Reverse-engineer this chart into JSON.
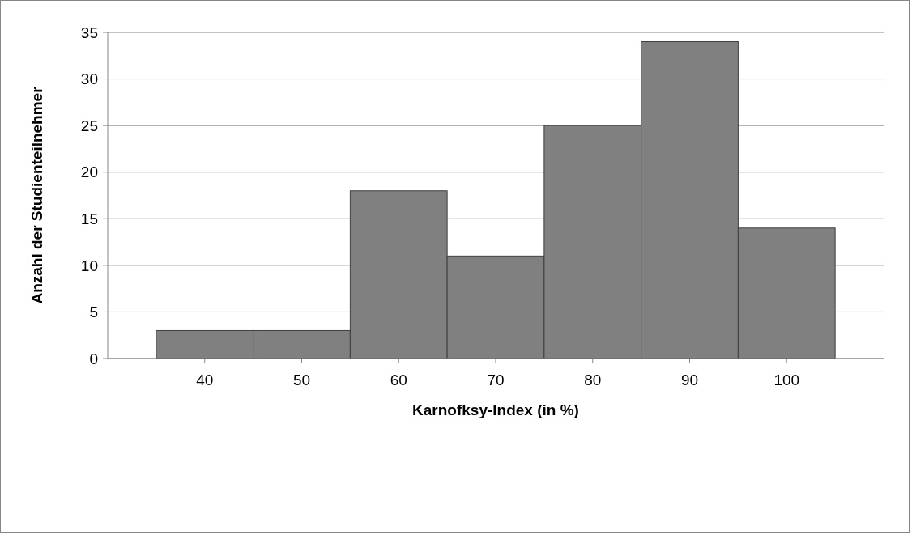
{
  "chart_data": {
    "type": "histogram",
    "xlabel": "Karnofksy-Index (in %)",
    "ylabel": "Anzahl der Studienteilnehmer",
    "bins": [
      35,
      45,
      55,
      65,
      75,
      85,
      95,
      105
    ],
    "values": [
      3,
      3,
      18,
      11,
      25,
      34,
      14
    ],
    "color": "#808080",
    "xlim": [
      30,
      110
    ],
    "xticks": [
      40,
      50,
      60,
      70,
      80,
      90,
      100
    ],
    "ylim": [
      0,
      35
    ],
    "yticks": [
      0,
      5,
      10,
      15,
      20,
      25,
      30,
      35
    ],
    "grid": "y"
  }
}
